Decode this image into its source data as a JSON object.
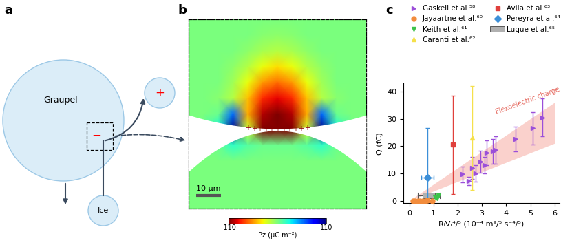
{
  "panel_a": {
    "label": "a",
    "diagram": {
      "nodes": [
        {
          "label": "Graupel"
        },
        {
          "label": "Ice"
        },
        {
          "label": "+"
        }
      ],
      "charge_on_graupel": "−"
    }
  },
  "panel_b": {
    "label": "b",
    "type": "heatmap",
    "tick_labels": false,
    "x": [
      -36,
      -30,
      -24,
      -18,
      -12,
      -6,
      0,
      6,
      12,
      18,
      24,
      30,
      36
    ],
    "y": [
      42,
      36,
      30,
      24,
      18,
      12,
      6,
      0,
      -6,
      -12,
      -18,
      -24,
      -30
    ],
    "cells": [
      [
        0,
        0,
        0,
        0,
        0,
        0,
        0,
        0,
        0,
        0,
        0,
        0,
        0
      ],
      [
        0,
        0,
        0,
        0,
        0,
        -3,
        -5,
        -3,
        0,
        0,
        0,
        0,
        0
      ],
      [
        0,
        0,
        0,
        0,
        -5,
        -12,
        -15,
        -12,
        -5,
        0,
        0,
        0,
        0
      ],
      [
        0,
        0,
        0,
        -5,
        -15,
        -30,
        -38,
        -30,
        -15,
        -5,
        0,
        0,
        0
      ],
      [
        0,
        0,
        0,
        -10,
        -30,
        -55,
        -65,
        -55,
        -30,
        -10,
        0,
        0,
        0
      ],
      [
        0,
        0,
        -3,
        -15,
        -45,
        -80,
        -90,
        -80,
        -45,
        -15,
        -3,
        0,
        0
      ],
      [
        0,
        0,
        5,
        60,
        -50,
        -100,
        -110,
        -100,
        -50,
        60,
        5,
        0,
        0
      ],
      [
        0,
        5,
        30,
        110,
        -20,
        -110,
        -110,
        -110,
        -20,
        110,
        30,
        5,
        0
      ],
      [
        0,
        0,
        5,
        20,
        10,
        5,
        5,
        5,
        10,
        20,
        5,
        0,
        0
      ],
      [
        0,
        0,
        0,
        0,
        0,
        0,
        0,
        0,
        0,
        0,
        0,
        0,
        0
      ],
      [
        0,
        0,
        0,
        0,
        0,
        0,
        0,
        0,
        0,
        0,
        0,
        0,
        0
      ],
      [
        0,
        0,
        0,
        0,
        0,
        0,
        0,
        0,
        0,
        0,
        0,
        0,
        0
      ],
      [
        0,
        0,
        0,
        0,
        0,
        0,
        0,
        0,
        0,
        0,
        0,
        0,
        0
      ]
    ],
    "colorbar": {
      "label": "Pz (μC m⁻²)",
      "range": [
        -110,
        110
      ],
      "ticks": [
        -110,
        110
      ]
    },
    "scale_bar": {
      "length": 10,
      "label": "10 μm"
    },
    "charge_label": "+",
    "charge_count": 11
  },
  "chart_data": {
    "label": "c",
    "type": "scatter",
    "xlabel": "RᵢVᵣ⁴/⁵ (10⁻⁴ m⁹/⁵ s⁻⁴/⁵)",
    "ylabel": "Q (fC)",
    "xlim": [
      -0.25,
      6.2
    ],
    "ylim": [
      -1,
      43
    ],
    "xticks": [
      0,
      1,
      2,
      3,
      4,
      5,
      6
    ],
    "yticks": [
      0,
      10,
      20,
      30,
      40
    ],
    "legend": "upper center",
    "band": {
      "name": "Flexoelectric charge",
      "color": "#f7b3aa",
      "x": [
        0,
        6
      ],
      "lower": [
        0,
        21
      ],
      "upper": [
        0,
        36
      ]
    },
    "series": [
      {
        "name": "Gaskell et al.⁵⁸",
        "color": "#9b4fd9",
        "marker": "triangle_right",
        "x": [
          2.2,
          2.45,
          2.6,
          2.75,
          2.95,
          3.1,
          3.2,
          3.45,
          3.55,
          4.4,
          5.1,
          5.5
        ],
        "values": [
          9.6,
          7.2,
          12,
          10,
          14.3,
          13,
          17.5,
          18,
          18.5,
          22.5,
          26.5,
          30.5
        ],
        "yerr": [
          [
            3,
            3
          ],
          [
            1.5,
            1.5
          ],
          [
            4,
            4
          ],
          [
            3,
            3
          ],
          [
            4,
            4
          ],
          [
            3,
            3
          ],
          [
            4.5,
            4.5
          ],
          [
            4.5,
            4.5
          ],
          [
            5,
            5
          ],
          [
            4.5,
            4.5
          ],
          [
            6,
            6
          ],
          [
            7,
            7
          ]
        ]
      },
      {
        "name": "Jayaartne et al.⁶⁰",
        "color": "#f28c3c",
        "marker": "circle",
        "x": [
          0.15,
          0.25,
          0.35,
          0.45,
          0.55,
          0.65,
          0.75,
          0.95
        ],
        "values": [
          0,
          0,
          0,
          0,
          0,
          0,
          0.2,
          0
        ]
      },
      {
        "name": "Keith et al.⁶¹",
        "color": "#3cc24a",
        "marker": "triangle_down",
        "x": [
          1.05,
          1.15,
          1.2
        ],
        "values": [
          1.5,
          1.0,
          1.8
        ]
      },
      {
        "name": "Caranti et al.⁶²",
        "color": "#f5e04a",
        "marker": "triangle_up",
        "x": [
          2.6
        ],
        "values": [
          23
        ],
        "yerr": [
          [
            19,
            19
          ]
        ]
      },
      {
        "name": "Avila et al.⁶³",
        "color": "#e0403c",
        "marker": "square",
        "x": [
          1.8
        ],
        "values": [
          20.5
        ],
        "yerr": [
          [
            18,
            18
          ]
        ]
      },
      {
        "name": "Pereyra et al.⁶⁴",
        "color": "#3c8fd8",
        "marker": "diamond",
        "x": [
          0.75
        ],
        "values": [
          8.5
        ],
        "yerr": [
          [
            8.5,
            18
          ]
        ],
        "xerr": [
          [
            0.25,
            0.25
          ]
        ]
      },
      {
        "name": "Luque et al.⁶⁵",
        "color": "#b0b0b0",
        "marker": "box",
        "x": [
          0.8
        ],
        "values": [
          2
        ],
        "box_x": [
          0.55,
          1.05
        ],
        "box_y": [
          1,
          3
        ],
        "whisker_x": [
          0.35,
          1.25
        ]
      }
    ]
  }
}
